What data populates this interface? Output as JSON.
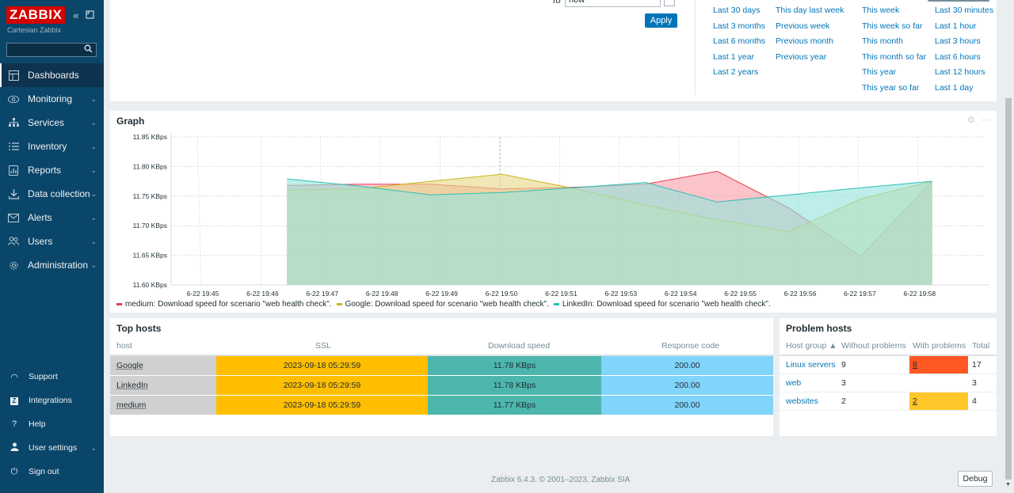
{
  "sidebar": {
    "logo": "ZABBIX",
    "server_name": "Cartesian Zabbix",
    "search_placeholder": "",
    "menu": [
      {
        "label": "Dashboards",
        "icon": "dashboard-icon",
        "active": true
      },
      {
        "label": "Monitoring",
        "icon": "eye-icon"
      },
      {
        "label": "Services",
        "icon": "services-icon"
      },
      {
        "label": "Inventory",
        "icon": "list-icon"
      },
      {
        "label": "Reports",
        "icon": "report-icon"
      },
      {
        "label": "Data collection",
        "icon": "download-icon"
      },
      {
        "label": "Alerts",
        "icon": "envelope-icon"
      },
      {
        "label": "Users",
        "icon": "users-icon"
      },
      {
        "label": "Administration",
        "icon": "gear-icon"
      }
    ],
    "bottom": [
      {
        "label": "Support",
        "icon": "headset-icon"
      },
      {
        "label": "Integrations",
        "icon": "z-icon"
      },
      {
        "label": "Help",
        "icon": "question-icon"
      },
      {
        "label": "User settings",
        "icon": "user-icon"
      },
      {
        "label": "Sign out",
        "icon": "power-icon"
      }
    ]
  },
  "time_filter": {
    "to_label": "To",
    "to_value": "now",
    "apply": "Apply",
    "col1": [
      "Last 30 days",
      "Last 3 months",
      "Last 6 months",
      "Last 1 year",
      "Last 2 years"
    ],
    "col2": [
      "This day last week",
      "Previous week",
      "Previous month",
      "Previous year"
    ],
    "col3": [
      "This week",
      "This week so far",
      "This month",
      "This month so far",
      "This year",
      "This year so far"
    ],
    "col4": [
      "Last 30 minutes",
      "Last 1 hour",
      "Last 3 hours",
      "Last 6 hours",
      "Last 12 hours",
      "Last 1 day"
    ]
  },
  "graph": {
    "title": "Graph"
  },
  "chart_data": {
    "type": "area",
    "x": [
      "6-22 19:45",
      "6-22 19:46",
      "6-22 19:47",
      "6-22 19:48",
      "6-22 19:49",
      "6-22 19:50",
      "6-22 19:51",
      "6-22 19:53",
      "6-22 19:54",
      "6-22 19:55",
      "6-22 19:56",
      "6-22 19:57",
      "6-22 19:58"
    ],
    "y_ticks": [
      "11.85 KBps",
      "11.80 KBps",
      "11.75 KBps",
      "11.70 KBps",
      "11.65 KBps",
      "11.60 KBps"
    ],
    "ylim": [
      11.6,
      11.85
    ],
    "unit": "KBps",
    "series": [
      {
        "name": "medium: Download speed for scenario \"web health check\".",
        "color": "#e83d52",
        "fill": "#f7a0aa",
        "points": [
          [
            0.5,
            11.768
          ],
          [
            1.5,
            11.77
          ],
          [
            2.5,
            11.77
          ],
          [
            3.5,
            11.762
          ],
          [
            4.5,
            11.765
          ],
          [
            5.5,
            11.77
          ],
          [
            6.5,
            11.792
          ],
          [
            7.5,
            11.73
          ],
          [
            8.5,
            11.648
          ],
          [
            9.5,
            11.775
          ]
        ]
      },
      {
        "name": "Google: Download speed for scenario \"web health check\".",
        "color": "#c9b81c",
        "fill": "#e6d88a",
        "points": [
          [
            0.5,
            11.76
          ],
          [
            1.5,
            11.762
          ],
          [
            2.5,
            11.775
          ],
          [
            3.5,
            11.787
          ],
          [
            4.5,
            11.763
          ],
          [
            5.5,
            11.735
          ],
          [
            6.5,
            11.71
          ],
          [
            7.5,
            11.69
          ],
          [
            8.5,
            11.745
          ],
          [
            9.5,
            11.775
          ]
        ]
      },
      {
        "name": "LinkedIn: Download speed for scenario \"web health check\".",
        "color": "#2fbfb4",
        "fill": "#94e3dc",
        "points": [
          [
            0.5,
            11.779
          ],
          [
            1.5,
            11.767
          ],
          [
            2.5,
            11.752
          ],
          [
            3.5,
            11.756
          ],
          [
            4.5,
            11.764
          ],
          [
            5.5,
            11.773
          ],
          [
            6.5,
            11.74
          ],
          [
            7.5,
            11.752
          ],
          [
            8.5,
            11.764
          ],
          [
            9.5,
            11.775
          ]
        ]
      }
    ]
  },
  "top_hosts": {
    "title": "Top hosts",
    "headers": [
      "host",
      "SSL",
      "Download speed",
      "Response code"
    ],
    "rows": [
      {
        "host": "Google",
        "ssl": "2023-09-18 05:29:59",
        "speed": "11.78 KBps",
        "code": "200.00"
      },
      {
        "host": "LinkedIn",
        "ssl": "2023-09-18 05:29:59",
        "speed": "11.78 KBps",
        "code": "200.00"
      },
      {
        "host": "medium",
        "ssl": "2023-09-18 05:29:59",
        "speed": "11.77 KBps",
        "code": "200.00"
      }
    ],
    "colors": {
      "host": "#d0d0d0",
      "ssl": "#ffbf00",
      "speed": "#4db6ac",
      "code": "#81d4fa"
    }
  },
  "problem_hosts": {
    "title": "Problem hosts",
    "headers": [
      "Host group ▲",
      "Without problems",
      "With problems",
      "Total"
    ],
    "rows": [
      {
        "group": "Linux servers",
        "without": "9",
        "with": "8",
        "total": "17",
        "with_color": "#ff5722"
      },
      {
        "group": "web",
        "without": "3",
        "with": "",
        "total": "3",
        "with_color": ""
      },
      {
        "group": "websites",
        "without": "2",
        "with": "2",
        "total": "4",
        "with_color": "#ffc629"
      }
    ]
  },
  "footer": {
    "copyright": "Zabbix 6.4.3. © 2001–2023, Zabbix SIA",
    "debug": "Debug"
  }
}
